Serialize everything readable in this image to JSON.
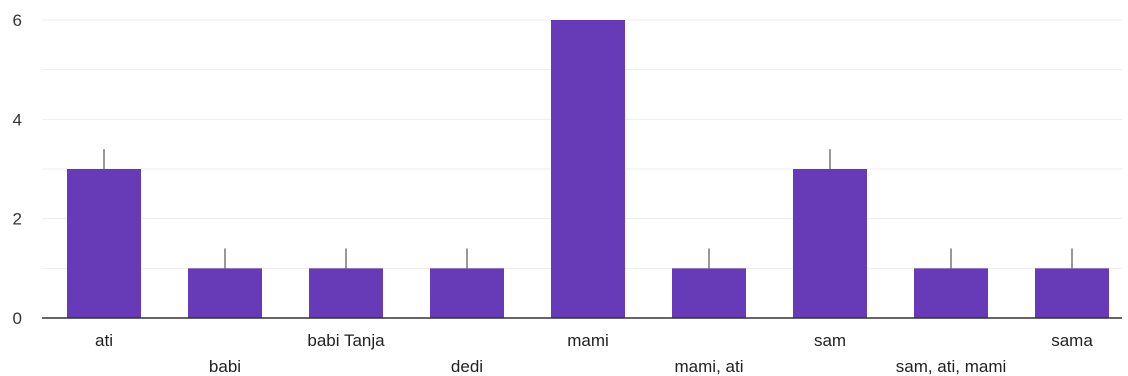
{
  "chart_data": {
    "type": "bar",
    "categories": [
      "ati",
      "babi",
      "babi Tanja",
      "dedi",
      "mami",
      "mami, ati",
      "sam",
      "sam, ati, mami",
      "sama"
    ],
    "values": [
      3,
      1,
      1,
      1,
      6,
      1,
      3,
      1,
      1
    ],
    "ylim": [
      0,
      6
    ],
    "yticks": [
      0,
      2,
      4,
      6
    ],
    "grid": true,
    "bar_color": "#673ab7",
    "grid_color": "#eeeeee",
    "axis_color": "#333333",
    "whisker_color": "#777777"
  }
}
